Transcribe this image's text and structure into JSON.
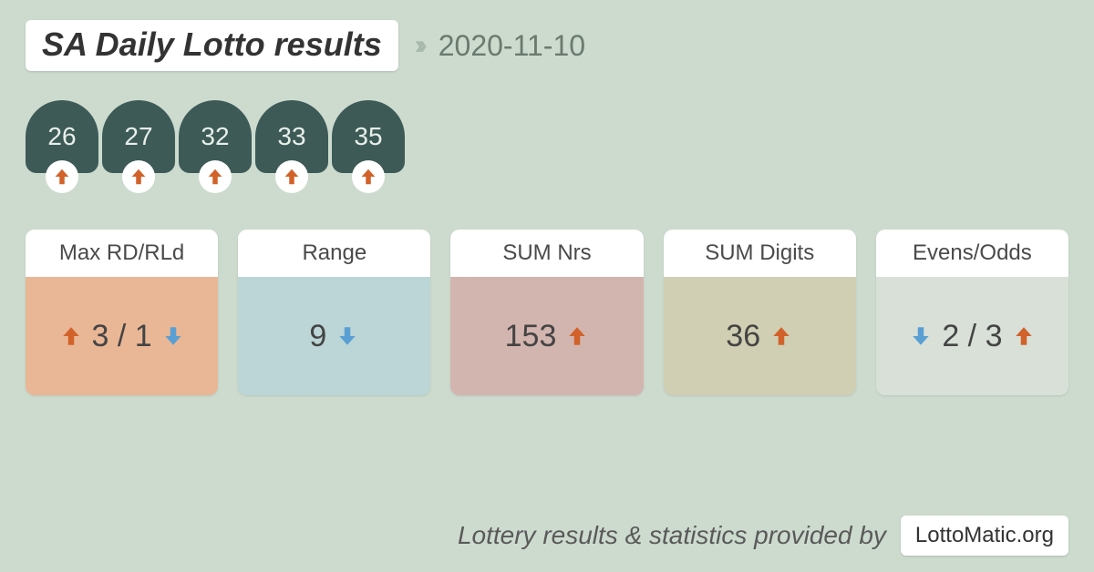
{
  "header": {
    "title": "SA Daily Lotto results",
    "date": "2020-11-10"
  },
  "colors": {
    "page_bg": "#cddbcf",
    "ball_bg": "#3d5a57",
    "ball_text": "#e8efe9",
    "arrow_up": "#d1622a",
    "arrow_down": "#5a9fd4",
    "card_header_bg": "#ffffff",
    "white": "#ffffff"
  },
  "balls": [
    {
      "number": "26",
      "trend": "up"
    },
    {
      "number": "27",
      "trend": "up"
    },
    {
      "number": "32",
      "trend": "up"
    },
    {
      "number": "33",
      "trend": "up"
    },
    {
      "number": "35",
      "trend": "up"
    }
  ],
  "stats": [
    {
      "label": "Max RD/RLd",
      "body_bg": "#e9b795",
      "parts": [
        {
          "type": "arrow",
          "dir": "up",
          "color": "#d1622a"
        },
        {
          "type": "text",
          "value": "3 / 1"
        },
        {
          "type": "arrow",
          "dir": "down",
          "color": "#5a9fd4"
        }
      ]
    },
    {
      "label": "Range",
      "body_bg": "#bcd5d6",
      "parts": [
        {
          "type": "text",
          "value": "9"
        },
        {
          "type": "arrow",
          "dir": "down",
          "color": "#5a9fd4"
        }
      ]
    },
    {
      "label": "SUM Nrs",
      "body_bg": "#d3b5af",
      "parts": [
        {
          "type": "text",
          "value": "153"
        },
        {
          "type": "arrow",
          "dir": "up",
          "color": "#d1622a"
        }
      ]
    },
    {
      "label": "SUM Digits",
      "body_bg": "#d0cfb3",
      "parts": [
        {
          "type": "text",
          "value": "36"
        },
        {
          "type": "arrow",
          "dir": "up",
          "color": "#d1622a"
        }
      ]
    },
    {
      "label": "Evens/Odds",
      "body_bg": "#d8e0d8",
      "parts": [
        {
          "type": "arrow",
          "dir": "down",
          "color": "#5a9fd4"
        },
        {
          "type": "text",
          "value": "2 / 3"
        },
        {
          "type": "arrow",
          "dir": "up",
          "color": "#d1622a"
        }
      ]
    }
  ],
  "footer": {
    "text": "Lottery results & statistics provided by",
    "badge": "LottoMatic.org"
  }
}
